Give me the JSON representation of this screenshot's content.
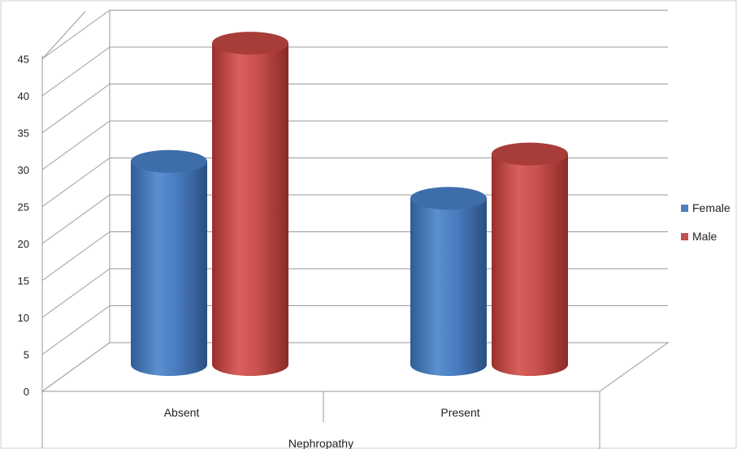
{
  "chart_data": {
    "type": "bar",
    "style": "3d-cylinder",
    "categories": [
      "Absent",
      "Present"
    ],
    "series": [
      {
        "name": "Female",
        "values": [
          27.5,
          22.5
        ],
        "color": "#4F81BD"
      },
      {
        "name": "Male",
        "values": [
          43.5,
          28.5
        ],
        "color": "#C0504D"
      }
    ],
    "title": "",
    "xlabel": "Nephropathy",
    "ylabel": "",
    "ylim": [
      0,
      45
    ],
    "yticks": [
      0,
      5,
      10,
      15,
      20,
      25,
      30,
      35,
      40,
      45
    ],
    "grid": true,
    "legend": "right"
  }
}
